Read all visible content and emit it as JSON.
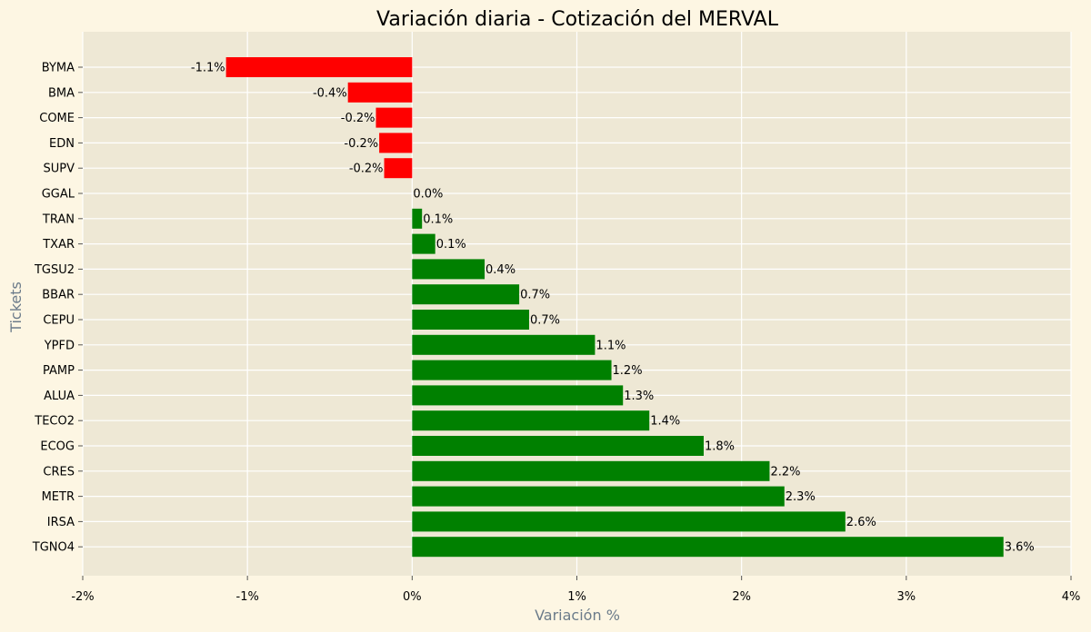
{
  "chart_data": {
    "type": "bar",
    "orientation": "horizontal",
    "title": "Variación diaria - Cotización del MERVAL",
    "xlabel": "Variación %",
    "ylabel": "Tickets",
    "xlim": [
      -2,
      4
    ],
    "x_ticks": [
      -2,
      -1,
      0,
      1,
      2,
      3,
      4
    ],
    "x_tick_labels": [
      "-2%",
      "-1%",
      "0%",
      "1%",
      "2%",
      "3%",
      "4%"
    ],
    "grid": true,
    "categories": [
      "BYMA",
      "BMA",
      "COME",
      "EDN",
      "SUPV",
      "GGAL",
      "TRAN",
      "TXAR",
      "TGSU2",
      "BBAR",
      "CEPU",
      "YPFD",
      "PAMP",
      "ALUA",
      "TECO2",
      "ECOG",
      "CRES",
      "METR",
      "IRSA",
      "TGNO4"
    ],
    "values": [
      -1.13,
      -0.39,
      -0.22,
      -0.2,
      -0.17,
      0.0,
      0.06,
      0.14,
      0.44,
      0.65,
      0.71,
      1.11,
      1.21,
      1.28,
      1.44,
      1.77,
      2.17,
      2.26,
      2.63,
      3.59
    ],
    "value_labels": [
      "-1.1%",
      "-0.4%",
      "-0.2%",
      "-0.2%",
      "-0.2%",
      "0.0%",
      "0.1%",
      "0.1%",
      "0.4%",
      "0.7%",
      "0.7%",
      "1.1%",
      "1.2%",
      "1.3%",
      "1.4%",
      "1.8%",
      "2.2%",
      "2.3%",
      "2.6%",
      "3.6%"
    ],
    "colors": {
      "positive": "#008000",
      "negative": "#ff0000",
      "background": "#fdf6e3",
      "plot_background": "#eee8d5",
      "grid": "#ffffff"
    }
  }
}
